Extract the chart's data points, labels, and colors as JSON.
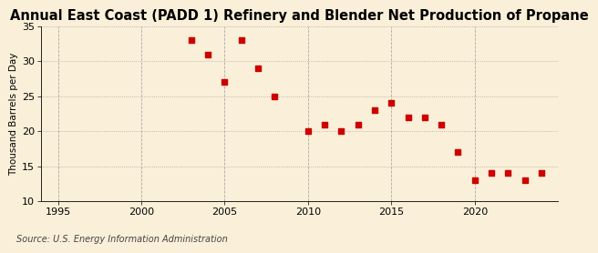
{
  "title": "Annual East Coast (PADD 1) Refinery and Blender Net Production of Propane",
  "ylabel": "Thousand Barrels per Day",
  "source": "Source: U.S. Energy Information Administration",
  "background_color": "#faefd8",
  "years": [
    2003,
    2004,
    2005,
    2006,
    2007,
    2008,
    2010,
    2011,
    2012,
    2013,
    2014,
    2015,
    2016,
    2017,
    2018,
    2019,
    2020,
    2021,
    2022,
    2023,
    2024
  ],
  "values": [
    33,
    31,
    27,
    33,
    29,
    25,
    20,
    21,
    20,
    21,
    23,
    24,
    22,
    22,
    21,
    17,
    13,
    14,
    14,
    13,
    14
  ],
  "marker_color": "#cc0000",
  "marker_size": 18,
  "xlim": [
    1994,
    2025
  ],
  "ylim": [
    10,
    35
  ],
  "xticks": [
    1995,
    2000,
    2005,
    2010,
    2015,
    2020
  ],
  "yticks": [
    10,
    15,
    20,
    25,
    30,
    35
  ],
  "hgrid_color": "#aaaaaa",
  "vgrid_color": "#aaaaaa",
  "vgrid_style": "--",
  "hgrid_style": ":",
  "title_fontsize": 10.5,
  "label_fontsize": 7.5,
  "tick_fontsize": 8,
  "source_fontsize": 7
}
